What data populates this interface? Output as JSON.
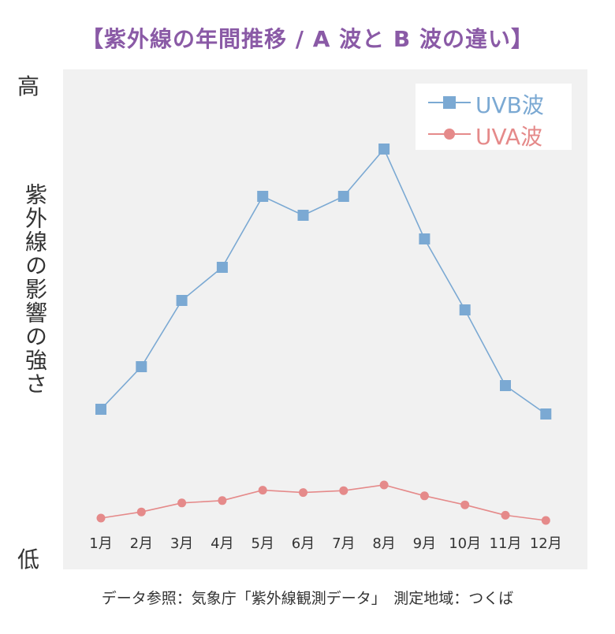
{
  "title": "【紫外線の年間推移 / A 波と B 波の違い】",
  "y_high": "高",
  "y_low": "低",
  "y_label": "紫外線の影響の強さ",
  "footer": "データ参照：気象庁「紫外線観測データ」　測定地域：つくば",
  "chart_data": {
    "type": "line",
    "title": "【紫外線の年間推移 / A 波と B 波の違い】",
    "ylabel": "紫外線の影響の強さ",
    "ylim": [
      0,
      100
    ],
    "categories": [
      "1月",
      "2月",
      "3月",
      "4月",
      "5月",
      "6月",
      "7月",
      "8月",
      "9月",
      "10月",
      "11月",
      "12月"
    ],
    "series": [
      {
        "name": "UVB波",
        "marker": "square",
        "color": "#7ba9d3",
        "values": [
          29,
          38,
          52,
          59,
          74,
          70,
          74,
          84,
          65,
          50,
          34,
          28
        ]
      },
      {
        "name": "UVA波",
        "marker": "circle",
        "color": "#e58a8a",
        "values": [
          6,
          7.3,
          9.2,
          9.7,
          11.9,
          11.4,
          11.8,
          13,
          10.7,
          8.8,
          6.6,
          5.5
        ]
      }
    ],
    "grid": false,
    "legend_position": "top-right"
  }
}
